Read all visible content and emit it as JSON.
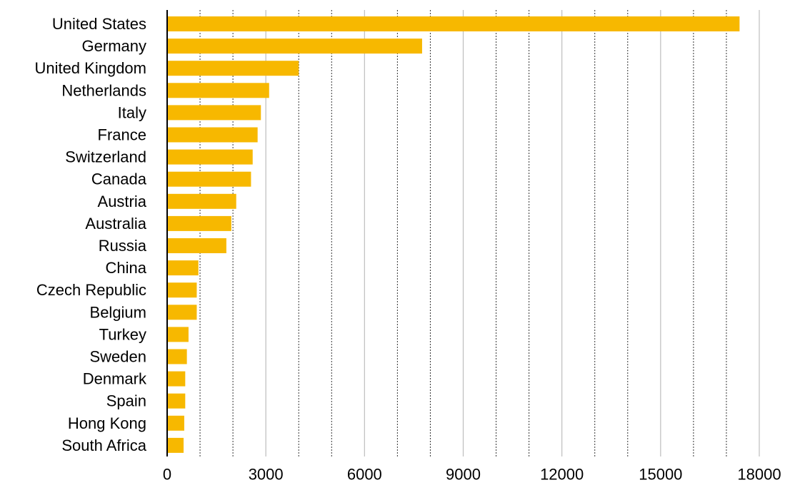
{
  "chart_data": {
    "type": "bar",
    "orientation": "horizontal",
    "categories": [
      "United States",
      "Germany",
      "United Kingdom",
      "Netherlands",
      "Italy",
      "France",
      "Switzerland",
      "Canada",
      "Austria",
      "Australia",
      "Russia",
      "China",
      "Czech Republic",
      "Belgium",
      "Turkey",
      "Sweden",
      "Denmark",
      "Spain",
      "Hong Kong",
      "South Africa"
    ],
    "values": [
      17400,
      7750,
      4000,
      3100,
      2850,
      2750,
      2600,
      2550,
      2100,
      1950,
      1800,
      950,
      900,
      900,
      650,
      600,
      550,
      550,
      520,
      500
    ],
    "xlim": [
      0,
      18000
    ],
    "xticks": [
      0,
      3000,
      6000,
      9000,
      12000,
      15000,
      18000
    ],
    "xtick_labels": [
      "0",
      "3000",
      "6000",
      "9000",
      "12000",
      "15000",
      "18000"
    ],
    "minor_gridlines": [
      1000,
      2000,
      4000,
      5000,
      7000,
      8000,
      10000,
      11000,
      13000,
      14000,
      16000,
      17000
    ],
    "title": "",
    "xlabel": "",
    "ylabel": "",
    "grid": "vertical",
    "legend": "none",
    "bar_color": "#F7B800"
  }
}
